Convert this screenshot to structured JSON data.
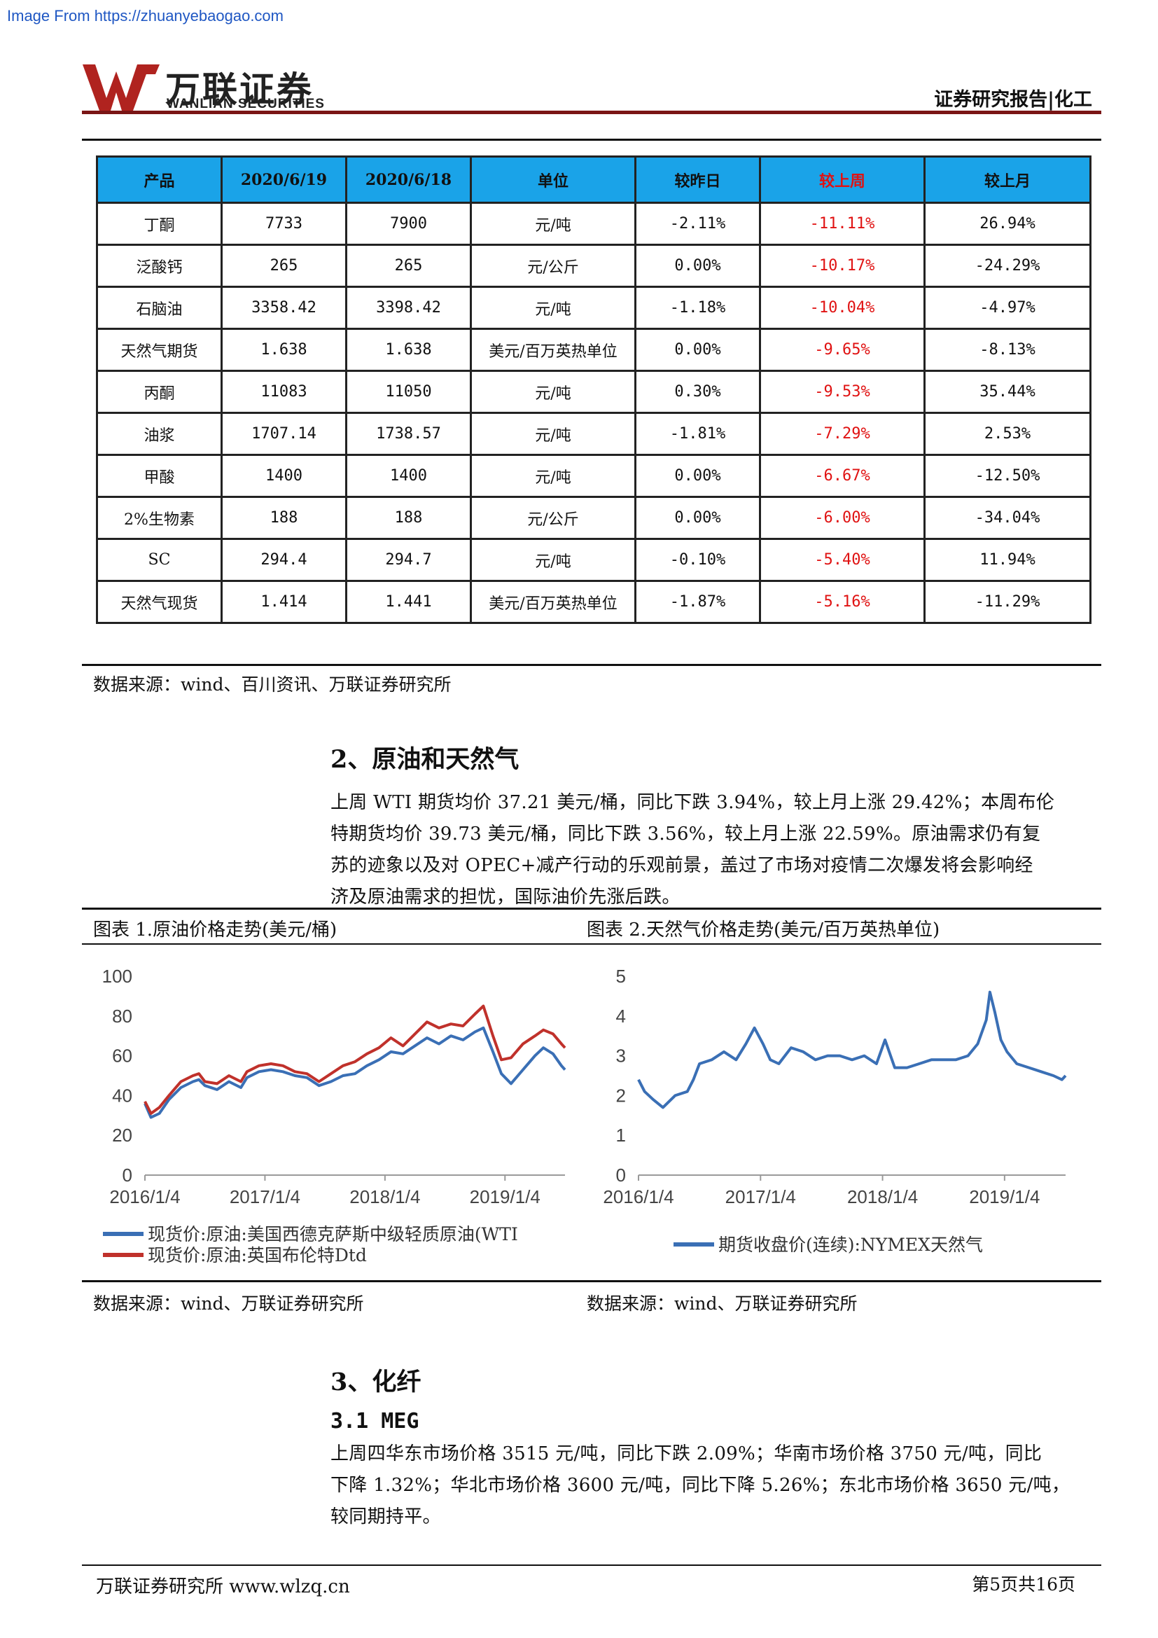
{
  "header": {
    "image_source": "Image From https://zhuanyebaogao.com",
    "logo_cn": "万联证券",
    "logo_en": "WANLIAN SECURITIES",
    "report_type": "证券研究报告|化工"
  },
  "price_table": {
    "columns": [
      "产品",
      "2020/6/19",
      "2020/6/18",
      "单位",
      "较昨日",
      "较上周",
      "较上月"
    ],
    "rows": [
      [
        "丁酮",
        "7733",
        "7900",
        "元/吨",
        "-2.11%",
        "-11.11%",
        "26.94%"
      ],
      [
        "泛酸钙",
        "265",
        "265",
        "元/公斤",
        "0.00%",
        "-10.17%",
        "-24.29%"
      ],
      [
        "石脑油",
        "3358.42",
        "3398.42",
        "元/吨",
        "-1.18%",
        "-10.04%",
        "-4.97%"
      ],
      [
        "天然气期货",
        "1.638",
        "1.638",
        "美元/百万英热单位",
        "0.00%",
        "-9.65%",
        "-8.13%"
      ],
      [
        "丙酮",
        "11083",
        "11050",
        "元/吨",
        "0.30%",
        "-9.53%",
        "35.44%"
      ],
      [
        "油浆",
        "1707.14",
        "1738.57",
        "元/吨",
        "-1.81%",
        "-7.29%",
        "2.53%"
      ],
      [
        "甲酸",
        "1400",
        "1400",
        "元/吨",
        "0.00%",
        "-6.67%",
        "-12.50%"
      ],
      [
        "2%生物素",
        "188",
        "188",
        "元/公斤",
        "0.00%",
        "-6.00%",
        "-34.04%"
      ],
      [
        "SC",
        "294.4",
        "294.7",
        "元/吨",
        "-0.10%",
        "-5.40%",
        "11.94%"
      ],
      [
        "天然气现货",
        "1.414",
        "1.441",
        "美元/百万英热单位",
        "-1.87%",
        "-5.16%",
        "-11.29%"
      ]
    ],
    "source": "数据来源：wind、百川资讯、万联证券研究所"
  },
  "section2": {
    "title": "2、原油和天然气",
    "lines": [
      "上周 WTI 期货均价 37.21 美元/桶，同比下跌 3.94%，较上月上涨 29.42%；本周布伦",
      "特期货均价 39.73 美元/桶，同比下跌 3.56%，较上月上涨 22.59%。原油需求仍有复",
      "苏的迹象以及对 OPEC+减产行动的乐观前景，盖过了市场对疫情二次爆发将会影响经",
      "济及原油需求的担忧，国际油价先涨后跌。"
    ]
  },
  "figures": {
    "fig1_caption": "图表 1.原油价格走势(美元/桶)",
    "fig2_caption": "图表 2.天然气价格走势(美元/百万英热单位)",
    "fig1_source": "数据来源：wind、万联证券研究所",
    "fig2_source": "数据来源：wind、万联证券研究所"
  },
  "chart_data": [
    {
      "type": "line",
      "ylim": [
        0,
        100
      ],
      "yticks": [
        "0",
        "20",
        "40",
        "60",
        "80",
        "100"
      ],
      "xticks": [
        "2016/1/4",
        "2017/1/4",
        "2018/1/4",
        "2019/1/4"
      ],
      "xlim": [
        2016.0,
        2019.5
      ],
      "grid": false,
      "legend_position": "bottom",
      "series": [
        {
          "name": "现货价:原油:美国西德克萨斯中级轻质原油(WTI",
          "color": "#3a6fb5",
          "x": [
            2016.0,
            2016.05,
            2016.12,
            2016.2,
            2016.3,
            2016.4,
            2016.45,
            2016.5,
            2016.6,
            2016.7,
            2016.8,
            2016.85,
            2016.95,
            2017.05,
            2017.15,
            2017.25,
            2017.35,
            2017.45,
            2017.55,
            2017.65,
            2017.75,
            2017.85,
            2017.95,
            2018.05,
            2018.15,
            2018.25,
            2018.35,
            2018.45,
            2018.55,
            2018.65,
            2018.75,
            2018.82,
            2018.9,
            2018.97,
            2019.05,
            2019.15,
            2019.25,
            2019.32,
            2019.4,
            2019.47,
            2019.5
          ],
          "values": [
            36,
            29,
            31,
            38,
            44,
            47,
            48,
            45,
            43,
            47,
            44,
            49,
            52,
            53,
            52,
            50,
            49,
            45,
            47,
            50,
            51,
            55,
            58,
            62,
            61,
            65,
            69,
            66,
            70,
            68,
            72,
            74,
            62,
            51,
            46,
            53,
            60,
            64,
            61,
            55,
            53
          ]
        },
        {
          "name": "现货价:原油:英国布伦特Dtd",
          "color": "#c0312b",
          "x": [
            2016.0,
            2016.05,
            2016.12,
            2016.2,
            2016.3,
            2016.4,
            2016.45,
            2016.5,
            2016.6,
            2016.7,
            2016.8,
            2016.85,
            2016.95,
            2017.05,
            2017.15,
            2017.25,
            2017.35,
            2017.45,
            2017.55,
            2017.65,
            2017.75,
            2017.85,
            2017.95,
            2018.05,
            2018.15,
            2018.25,
            2018.35,
            2018.45,
            2018.55,
            2018.65,
            2018.75,
            2018.82,
            2018.9,
            2018.97,
            2019.05,
            2019.15,
            2019.25,
            2019.32,
            2019.4,
            2019.47,
            2019.5
          ],
          "values": [
            37,
            31,
            34,
            40,
            47,
            50,
            51,
            47,
            46,
            50,
            47,
            52,
            55,
            56,
            55,
            52,
            51,
            47,
            51,
            55,
            57,
            61,
            64,
            69,
            65,
            71,
            77,
            74,
            76,
            75,
            81,
            85,
            70,
            58,
            59,
            66,
            70,
            73,
            71,
            66,
            64
          ]
        }
      ]
    },
    {
      "type": "line",
      "ylim": [
        0,
        5
      ],
      "yticks": [
        "0",
        "1",
        "2",
        "3",
        "4",
        "5"
      ],
      "xticks": [
        "2016/1/4",
        "2017/1/4",
        "2018/1/4",
        "2019/1/4"
      ],
      "xlim": [
        2016.0,
        2019.5
      ],
      "grid": false,
      "legend_position": "bottom",
      "series": [
        {
          "name": "期货收盘价(连续):NYMEX天然气",
          "color": "#3a6fb5",
          "x": [
            2016.0,
            2016.05,
            2016.12,
            2016.2,
            2016.3,
            2016.4,
            2016.45,
            2016.5,
            2016.6,
            2016.7,
            2016.8,
            2016.88,
            2016.95,
            2017.02,
            2017.08,
            2017.15,
            2017.25,
            2017.35,
            2017.45,
            2017.55,
            2017.65,
            2017.75,
            2017.85,
            2017.95,
            2018.02,
            2018.1,
            2018.2,
            2018.3,
            2018.4,
            2018.5,
            2018.6,
            2018.7,
            2018.78,
            2018.85,
            2018.88,
            2018.92,
            2018.97,
            2019.02,
            2019.1,
            2019.2,
            2019.3,
            2019.4,
            2019.47,
            2019.5
          ],
          "values": [
            2.4,
            2.1,
            1.9,
            1.7,
            2.0,
            2.1,
            2.4,
            2.8,
            2.9,
            3.1,
            2.9,
            3.3,
            3.7,
            3.3,
            2.9,
            2.8,
            3.2,
            3.1,
            2.9,
            3.0,
            3.0,
            2.9,
            3.0,
            2.8,
            3.4,
            2.7,
            2.7,
            2.8,
            2.9,
            2.9,
            2.9,
            3.0,
            3.3,
            3.9,
            4.6,
            4.1,
            3.4,
            3.1,
            2.8,
            2.7,
            2.6,
            2.5,
            2.4,
            2.5
          ]
        }
      ]
    }
  ],
  "section3": {
    "title": "3、化纤",
    "subtitle": "3.1 MEG",
    "lines": [
      "上周四华东市场价格 3515 元/吨，同比下跌 2.09%；华南市场价格 3750 元/吨，同比",
      "下降 1.32%；华北市场价格 3600 元/吨，同比下降 5.26%；东北市场价格 3650 元/吨，",
      "较同期持平。"
    ]
  },
  "footer": {
    "left": "万联证券研究所 www.wlzq.cn",
    "right": "第5页共16页"
  }
}
